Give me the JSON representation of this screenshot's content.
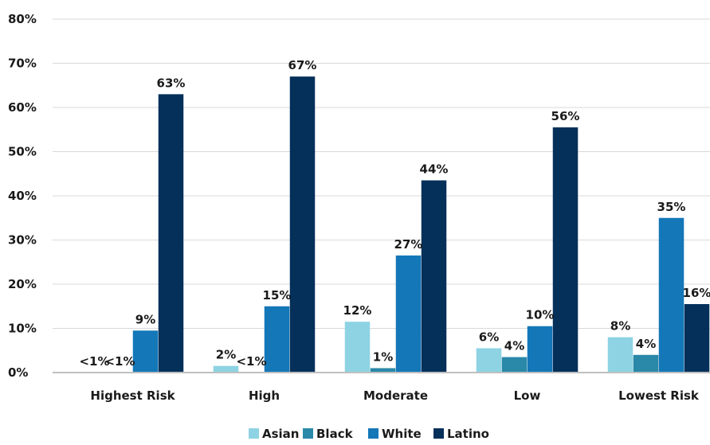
{
  "chart_data": {
    "type": "bar",
    "categories": [
      "Highest Risk",
      "High",
      "Moderate",
      "Low",
      "Lowest Risk"
    ],
    "ylim": [
      0,
      80
    ],
    "ytick_labels": [
      "0%",
      "10%",
      "20%",
      "30%",
      "40%",
      "50%",
      "60%",
      "70%",
      "80%"
    ],
    "grid": true,
    "legend_position": "bottom",
    "series": [
      {
        "name": "Asian",
        "color": "#8dd3e3",
        "values": [
          0,
          1.5,
          11.5,
          5.5,
          8
        ],
        "labels": [
          "<1%",
          "2%",
          "12%",
          "6%",
          "8%"
        ]
      },
      {
        "name": "Black",
        "color": "#2a88a8",
        "values": [
          0,
          0,
          1,
          3.5,
          4
        ],
        "labels": [
          "<1%",
          "<1%",
          "1%",
          "4%",
          "4%"
        ]
      },
      {
        "name": "White",
        "color": "#1377b8",
        "values": [
          9.5,
          15,
          26.5,
          10.5,
          35
        ],
        "labels": [
          "9%",
          "15%",
          "27%",
          "10%",
          "35%"
        ]
      },
      {
        "name": "Latino",
        "color": "#04305a",
        "values": [
          63,
          67,
          43.5,
          55.5,
          15.5
        ],
        "labels": [
          "63%",
          "67%",
          "44%",
          "56%",
          "16%"
        ]
      }
    ]
  }
}
